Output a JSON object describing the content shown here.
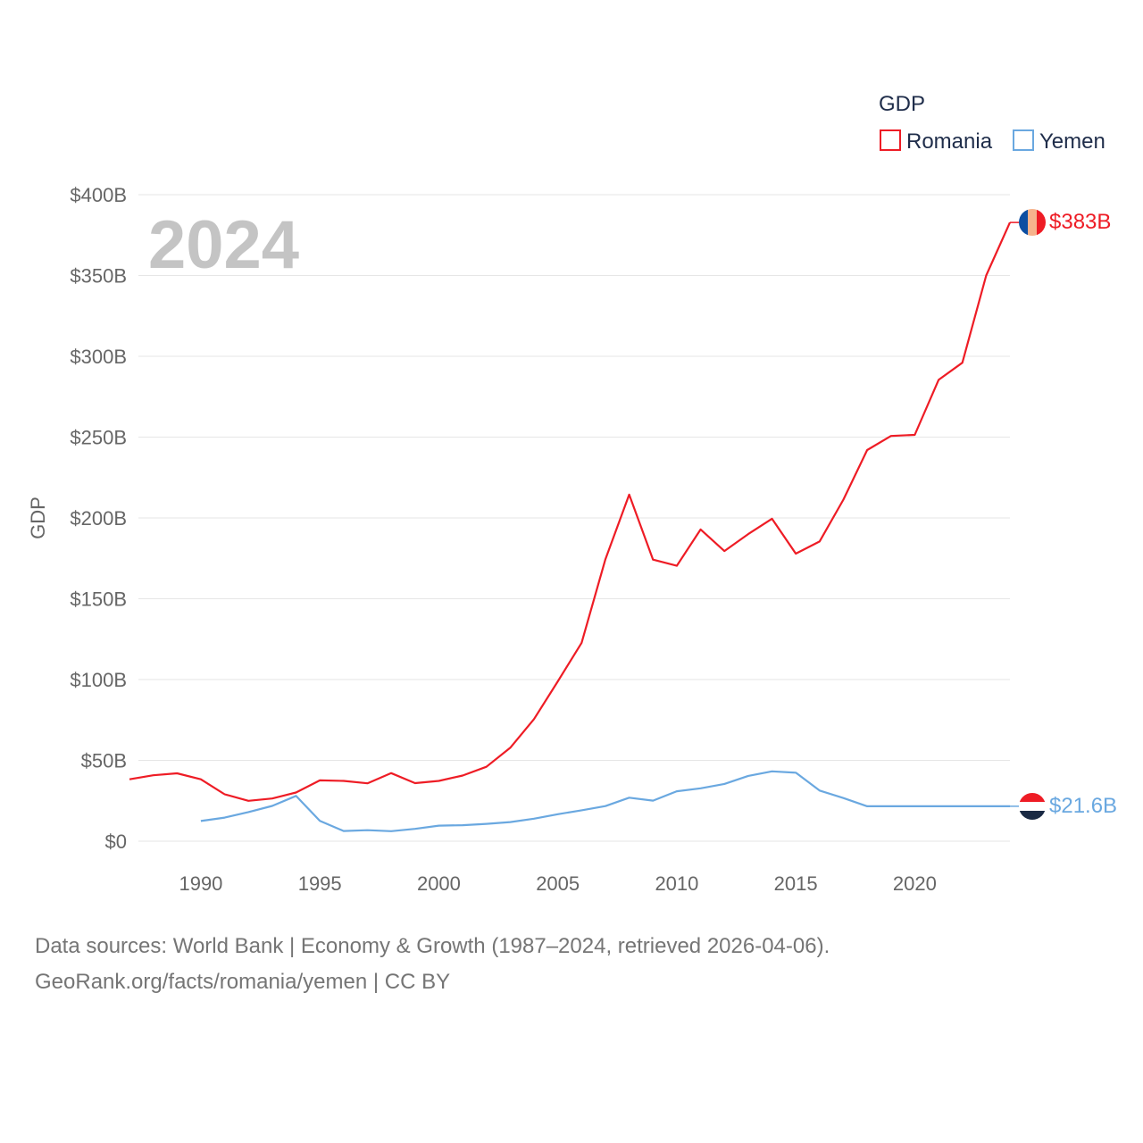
{
  "chart_data": {
    "type": "line",
    "title": "GDP",
    "ylabel": "GDP",
    "xlabel": "",
    "watermark_year": "2024",
    "xlim": [
      1987,
      2024
    ],
    "ylim": [
      0,
      400
    ],
    "y_ticks": [
      {
        "value": 0,
        "label": "$0"
      },
      {
        "value": 50,
        "label": "$50B"
      },
      {
        "value": 100,
        "label": "$100B"
      },
      {
        "value": 150,
        "label": "$150B"
      },
      {
        "value": 200,
        "label": "$200B"
      },
      {
        "value": 250,
        "label": "$250B"
      },
      {
        "value": 300,
        "label": "$300B"
      },
      {
        "value": 350,
        "label": "$350B"
      },
      {
        "value": 400,
        "label": "$400B"
      }
    ],
    "x_ticks": [
      {
        "value": 1990,
        "label": "1990"
      },
      {
        "value": 1995,
        "label": "1995"
      },
      {
        "value": 2000,
        "label": "2000"
      },
      {
        "value": 2005,
        "label": "2005"
      },
      {
        "value": 2010,
        "label": "2010"
      },
      {
        "value": 2015,
        "label": "2015"
      },
      {
        "value": 2020,
        "label": "2020"
      }
    ],
    "legend_title": "GDP",
    "legend_position": "top-right",
    "series": [
      {
        "name": "Romania",
        "color": "#ee1c25",
        "end_label": "$383B",
        "points": [
          [
            1987,
            38.3
          ],
          [
            1988,
            40.8
          ],
          [
            1989,
            42.0
          ],
          [
            1990,
            38.3
          ],
          [
            1991,
            29.0
          ],
          [
            1992,
            25.0
          ],
          [
            1993,
            26.4
          ],
          [
            1994,
            30.1
          ],
          [
            1995,
            37.6
          ],
          [
            1996,
            37.3
          ],
          [
            1997,
            35.8
          ],
          [
            1998,
            42.1
          ],
          [
            1999,
            35.9
          ],
          [
            2000,
            37.3
          ],
          [
            2001,
            40.6
          ],
          [
            2002,
            46.0
          ],
          [
            2003,
            57.8
          ],
          [
            2004,
            75.5
          ],
          [
            2005,
            98.9
          ],
          [
            2006,
            122.7
          ],
          [
            2007,
            174.5
          ],
          [
            2008,
            214.4
          ],
          [
            2009,
            174.2
          ],
          [
            2010,
            170.4
          ],
          [
            2011,
            192.9
          ],
          [
            2012,
            179.5
          ],
          [
            2013,
            190.0
          ],
          [
            2014,
            199.5
          ],
          [
            2015,
            177.9
          ],
          [
            2016,
            185.4
          ],
          [
            2017,
            211.3
          ],
          [
            2018,
            242.0
          ],
          [
            2019,
            250.7
          ],
          [
            2020,
            251.4
          ],
          [
            2021,
            285.4
          ],
          [
            2022,
            296.0
          ],
          [
            2023,
            350.0
          ],
          [
            2024,
            382.8
          ]
        ]
      },
      {
        "name": "Yemen",
        "color": "#6aa8e0",
        "end_label": "$21.6B",
        "points": [
          [
            1990,
            12.5
          ],
          [
            1991,
            14.6
          ],
          [
            1992,
            18.0
          ],
          [
            1993,
            21.8
          ],
          [
            1994,
            28.0
          ],
          [
            1995,
            12.6
          ],
          [
            1996,
            6.3
          ],
          [
            1997,
            6.8
          ],
          [
            1998,
            6.2
          ],
          [
            1999,
            7.6
          ],
          [
            2000,
            9.6
          ],
          [
            2001,
            9.9
          ],
          [
            2002,
            10.7
          ],
          [
            2003,
            11.8
          ],
          [
            2004,
            13.9
          ],
          [
            2005,
            16.7
          ],
          [
            2006,
            19.1
          ],
          [
            2007,
            21.7
          ],
          [
            2008,
            26.9
          ],
          [
            2009,
            25.1
          ],
          [
            2010,
            30.9
          ],
          [
            2011,
            32.7
          ],
          [
            2012,
            35.4
          ],
          [
            2013,
            40.4
          ],
          [
            2014,
            43.2
          ],
          [
            2015,
            42.4
          ],
          [
            2016,
            31.3
          ],
          [
            2017,
            26.7
          ],
          [
            2018,
            21.6
          ],
          [
            2019,
            21.6
          ],
          [
            2020,
            21.6
          ],
          [
            2021,
            21.6
          ],
          [
            2022,
            21.6
          ],
          [
            2023,
            21.6
          ],
          [
            2024,
            21.6
          ]
        ]
      }
    ]
  },
  "footer": {
    "line1": "Data sources: World Bank | Economy & Growth (1987–2024, retrieved 2026-04-06).",
    "line2": "GeoRank.org/facts/romania/yemen | CC BY"
  },
  "flags": {
    "romania": {
      "icon": "romania-flag-icon",
      "colors": [
        "#0b4ea2",
        "#f6b38c",
        "#ee1c25"
      ]
    },
    "yemen": {
      "icon": "yemen-flag-icon",
      "colors": [
        "#ee1c25",
        "#ffffff",
        "#1a2a44"
      ]
    }
  }
}
